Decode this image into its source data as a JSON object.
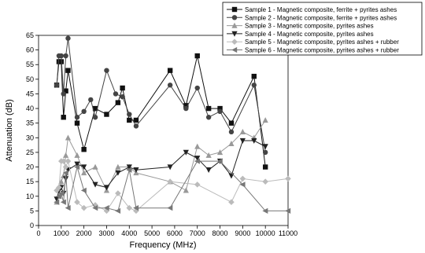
{
  "chart_data": {
    "type": "line",
    "xlabel": "Frequency (MHz)",
    "ylabel": "Attenuation (dB)",
    "xlim": [
      0,
      11000
    ],
    "ylim": [
      0,
      65
    ],
    "xticks": [
      0,
      1000,
      2000,
      3000,
      4000,
      5000,
      6000,
      7000,
      8000,
      9000,
      10000,
      11000
    ],
    "yticks": [
      0,
      5,
      10,
      15,
      20,
      25,
      30,
      35,
      40,
      45,
      50,
      55,
      60,
      65
    ],
    "grid": false,
    "legend_position": "top-right",
    "series": [
      {
        "name": "Sample 1 - Magnetic composite, ferrite + pyrites ashes",
        "color": "#111111",
        "marker": "square",
        "x": [
          800,
          900,
          1000,
          1100,
          1200,
          1300,
          1700,
          2000,
          2500,
          3000,
          3500,
          3700,
          4000,
          4300,
          5800,
          6500,
          7000,
          7500,
          8000,
          8500,
          9500,
          10000
        ],
        "y": [
          48,
          56,
          56,
          37,
          46,
          53,
          35,
          26,
          40,
          38,
          42,
          47,
          36,
          36,
          53,
          41,
          58,
          40,
          40,
          35,
          51,
          20
        ]
      },
      {
        "name": "Sample 2 - Magnetic composite, ferrite + pyrites ashes",
        "color": "#444444",
        "marker": "circle",
        "x": [
          800,
          900,
          1000,
          1100,
          1200,
          1300,
          1700,
          2000,
          2300,
          2500,
          3000,
          3400,
          3700,
          4000,
          4300,
          5800,
          6500,
          7000,
          7500,
          8000,
          8500,
          9500,
          10000
        ],
        "y": [
          48,
          58,
          58,
          45,
          58,
          64,
          37,
          39,
          43,
          37,
          53,
          45,
          44,
          38,
          34,
          48,
          40,
          47,
          37,
          39,
          32,
          48,
          25
        ]
      },
      {
        "name": "Sample 3 - Magnetic composite, pyrites ashes",
        "color": "#999999",
        "marker": "triangle-up",
        "x": [
          800,
          900,
          1000,
          1100,
          1200,
          1300,
          1700,
          2000,
          2500,
          3000,
          3500,
          4000,
          4300,
          5800,
          6500,
          7000,
          7500,
          8000,
          8500,
          9000,
          9500,
          10000
        ],
        "y": [
          8,
          10,
          15,
          17,
          24,
          30,
          24,
          18,
          20,
          12,
          20,
          20,
          18,
          15,
          12,
          27,
          24,
          25,
          28,
          32,
          30,
          36
        ]
      },
      {
        "name": "Sample 4 - Magnetic composite, pyrites ashes",
        "color": "#222222",
        "marker": "triangle-down",
        "x": [
          800,
          900,
          1000,
          1100,
          1200,
          1300,
          1700,
          2000,
          2500,
          3000,
          3500,
          4000,
          4300,
          5800,
          6500,
          7000,
          7500,
          8000,
          8500,
          9000,
          9500,
          10000
        ],
        "y": [
          9,
          12,
          13,
          11,
          16,
          19,
          21,
          20,
          14,
          13,
          18,
          20,
          19,
          20,
          25,
          23,
          19,
          22,
          17,
          29,
          29,
          27
        ]
      },
      {
        "name": "Sample 5 - Magnetic composite, pyrites ashes + rubber",
        "color": "#bbbbbb",
        "marker": "diamond",
        "x": [
          800,
          900,
          1000,
          1100,
          1200,
          1300,
          1700,
          2000,
          2500,
          3000,
          3500,
          4000,
          4300,
          5800,
          7000,
          8500,
          9000,
          10000,
          11000
        ],
        "y": [
          12,
          13,
          22,
          22,
          20,
          22,
          8,
          6,
          7,
          5,
          11,
          6,
          5,
          15,
          14,
          8,
          16,
          15,
          16
        ]
      },
      {
        "name": "Sample 6 - Magnetic composite, pyrites ashes + rubber",
        "color": "#777777",
        "marker": "triangle-left",
        "x": [
          800,
          900,
          1000,
          1100,
          1200,
          1300,
          1700,
          2000,
          2500,
          3000,
          3500,
          4000,
          4300,
          5800,
          7000,
          8000,
          9000,
          10000,
          11000
        ],
        "y": [
          8,
          10,
          11,
          8,
          18,
          6,
          20,
          12,
          6,
          6,
          5,
          19,
          6,
          6,
          22,
          22,
          14,
          5,
          5
        ]
      }
    ]
  }
}
